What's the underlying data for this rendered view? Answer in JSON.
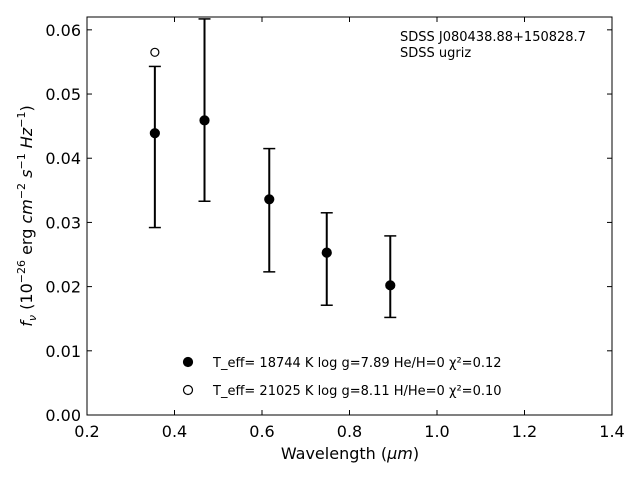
{
  "chart_data": {
    "type": "scatter",
    "title": "",
    "xlabel_main": "Wavelength (",
    "xlabel_unit": "μm",
    "xlabel_close": ")",
    "ylabel": "f_ν (10^-26 erg cm^-2 s^-1 Hz^-1)",
    "xlim": [
      0.2,
      1.4
    ],
    "ylim": [
      0.0,
      0.062
    ],
    "xticks": [
      "0.2",
      "0.4",
      "0.6",
      "0.8",
      "1.0",
      "1.2",
      "1.4"
    ],
    "yticks": [
      "0.00",
      "0.01",
      "0.02",
      "0.03",
      "0.04",
      "0.05",
      "0.06"
    ],
    "grid": false,
    "annotation": [
      "SDSS J080438.88+150828.7",
      "SDSS ugriz"
    ],
    "observed": {
      "x": [
        0.3551,
        0.4686,
        0.6166,
        0.748,
        0.8932
      ],
      "y": [
        0.0439,
        0.0459,
        0.0336,
        0.0252,
        0.0201
      ],
      "yerr_low": [
        0.0147,
        0.0126,
        0.0113,
        0.0081,
        0.0049
      ],
      "yerr_high": [
        0.0104,
        0.0158,
        0.0079,
        0.0063,
        0.0078
      ]
    },
    "series": [
      {
        "marker": "filled-circle",
        "legend_label": "T_eff= 18744 K  log g=7.89  He/H=0  χ²=0.12",
        "x": [
          0.3551,
          0.4686,
          0.6166,
          0.748,
          0.8932
        ],
        "y": [
          0.0439,
          0.0459,
          0.0336,
          0.0253,
          0.0202
        ]
      },
      {
        "marker": "open-circle",
        "legend_label": "T_eff= 21025 K  log g=8.11  H/He=0  χ²=0.10",
        "x": [
          0.3551
        ],
        "y": [
          0.0565
        ]
      }
    ],
    "legend_position": "bottom-center"
  }
}
